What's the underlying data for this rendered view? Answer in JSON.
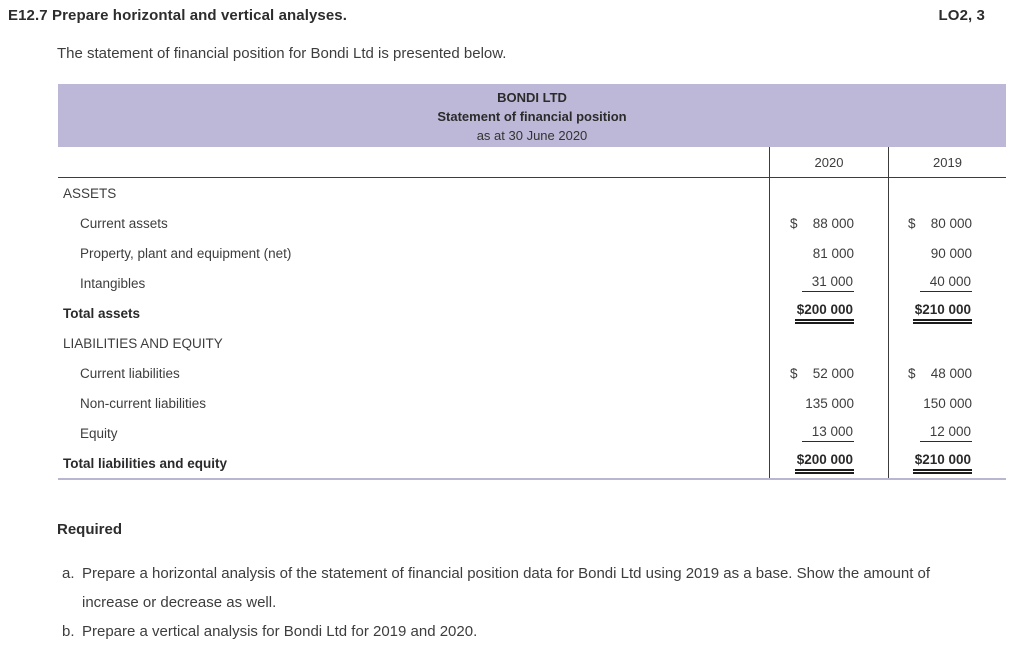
{
  "header": {
    "exercise_title": "E12.7 Prepare horizontal and vertical analyses.",
    "lo_tag": "LO2, 3"
  },
  "intro": "The statement of financial position for Bondi Ltd is presented below.",
  "statement": {
    "company": "BONDI LTD",
    "title": "Statement of financial position",
    "date": "as at 30 June 2020",
    "columns": [
      "2020",
      "2019"
    ],
    "rows": [
      {
        "label": "ASSETS",
        "cur": "",
        "v2020": "",
        "v2019": ""
      },
      {
        "label": "Current assets",
        "cur": "$",
        "v2020": "88 000",
        "v2019": "80 000"
      },
      {
        "label": "Property, plant and equipment (net)",
        "cur": "",
        "v2020": "81 000",
        "v2019": "90 000"
      },
      {
        "label": "Intangibles",
        "cur": "",
        "v2020": "31 000",
        "v2019": "40 000"
      },
      {
        "label": "Total assets",
        "cur": "",
        "v2020": "$200 000",
        "v2019": "$210 000"
      },
      {
        "label": "LIABILITIES AND EQUITY",
        "cur": "",
        "v2020": "",
        "v2019": ""
      },
      {
        "label": "Current liabilities",
        "cur": "$",
        "v2020": "52 000",
        "v2019": "48 000"
      },
      {
        "label": "Non-current liabilities",
        "cur": "",
        "v2020": "135 000",
        "v2019": "150 000"
      },
      {
        "label": "Equity",
        "cur": "",
        "v2020": "13 000",
        "v2019": "12 000"
      },
      {
        "label": "Total liabilities and equity",
        "cur": "",
        "v2020": "$200 000",
        "v2019": "$210 000"
      }
    ]
  },
  "required": {
    "heading": "Required",
    "items": [
      {
        "marker": "a.",
        "text": "Prepare a horizontal analysis of the statement of financial position data for Bondi Ltd using 2019 as a base. Show the amount of increase or decrease as well."
      },
      {
        "marker": "b.",
        "text": "Prepare a vertical analysis for Bondi Ltd for 2019 and 2020."
      }
    ]
  },
  "colors": {
    "header_purple": "#bdb8d7",
    "text_dark": "#2d2d2d",
    "border_dark": "#3c3c3c",
    "border_light": "#b9b6d1"
  }
}
